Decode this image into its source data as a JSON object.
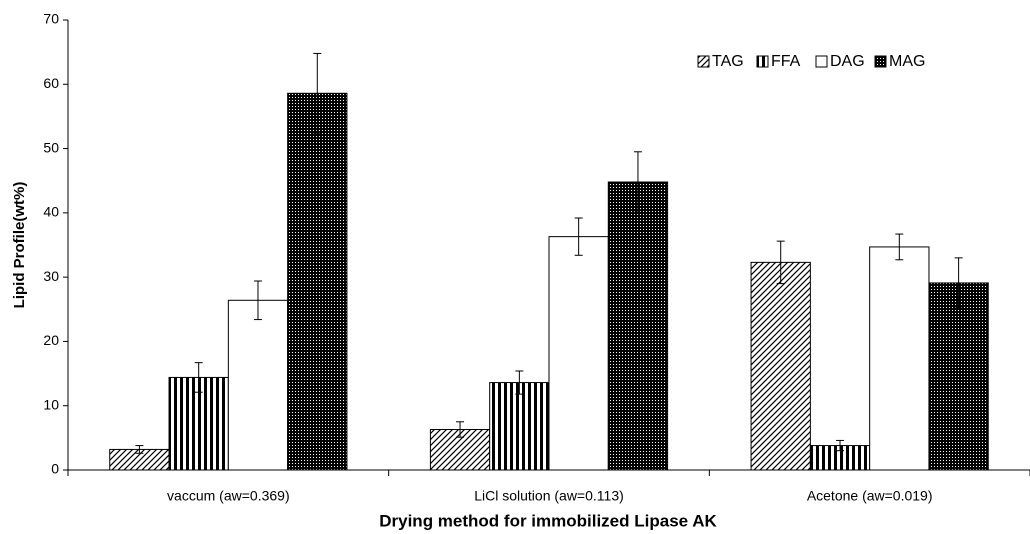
{
  "chart_data": {
    "type": "bar",
    "y_label": "Lipid Profile(wt%)",
    "x_label": "Drying method for immobilized Lipase AK",
    "categories": [
      "vaccum (aw=0.369)",
      "LiCl solution (aw=0.113)",
      "Acetone (aw=0.019)"
    ],
    "series": [
      {
        "name": "TAG",
        "color": "#000000",
        "pattern": "diagonal",
        "values": [
          3.2,
          6.3,
          32.3
        ],
        "errors": [
          0.6,
          1.2,
          3.3
        ]
      },
      {
        "name": "FFA",
        "color": "#000000",
        "pattern": "vertical",
        "values": [
          14.4,
          13.6,
          3.8
        ],
        "errors": [
          2.3,
          1.8,
          0.8
        ]
      },
      {
        "name": "DAG",
        "color": "#000000",
        "pattern": "none",
        "values": [
          26.4,
          36.3,
          34.7
        ],
        "errors": [
          3.0,
          2.9,
          2.0
        ]
      },
      {
        "name": "MAG",
        "color": "#000000",
        "pattern": "dots",
        "values": [
          58.6,
          44.8,
          29.1
        ],
        "errors": [
          6.2,
          4.7,
          3.9
        ]
      }
    ],
    "ylim": [
      0,
      70
    ],
    "yticks": [
      0,
      10,
      20,
      30,
      40,
      50,
      60,
      70
    ],
    "grid": false,
    "legend": "top-right"
  }
}
